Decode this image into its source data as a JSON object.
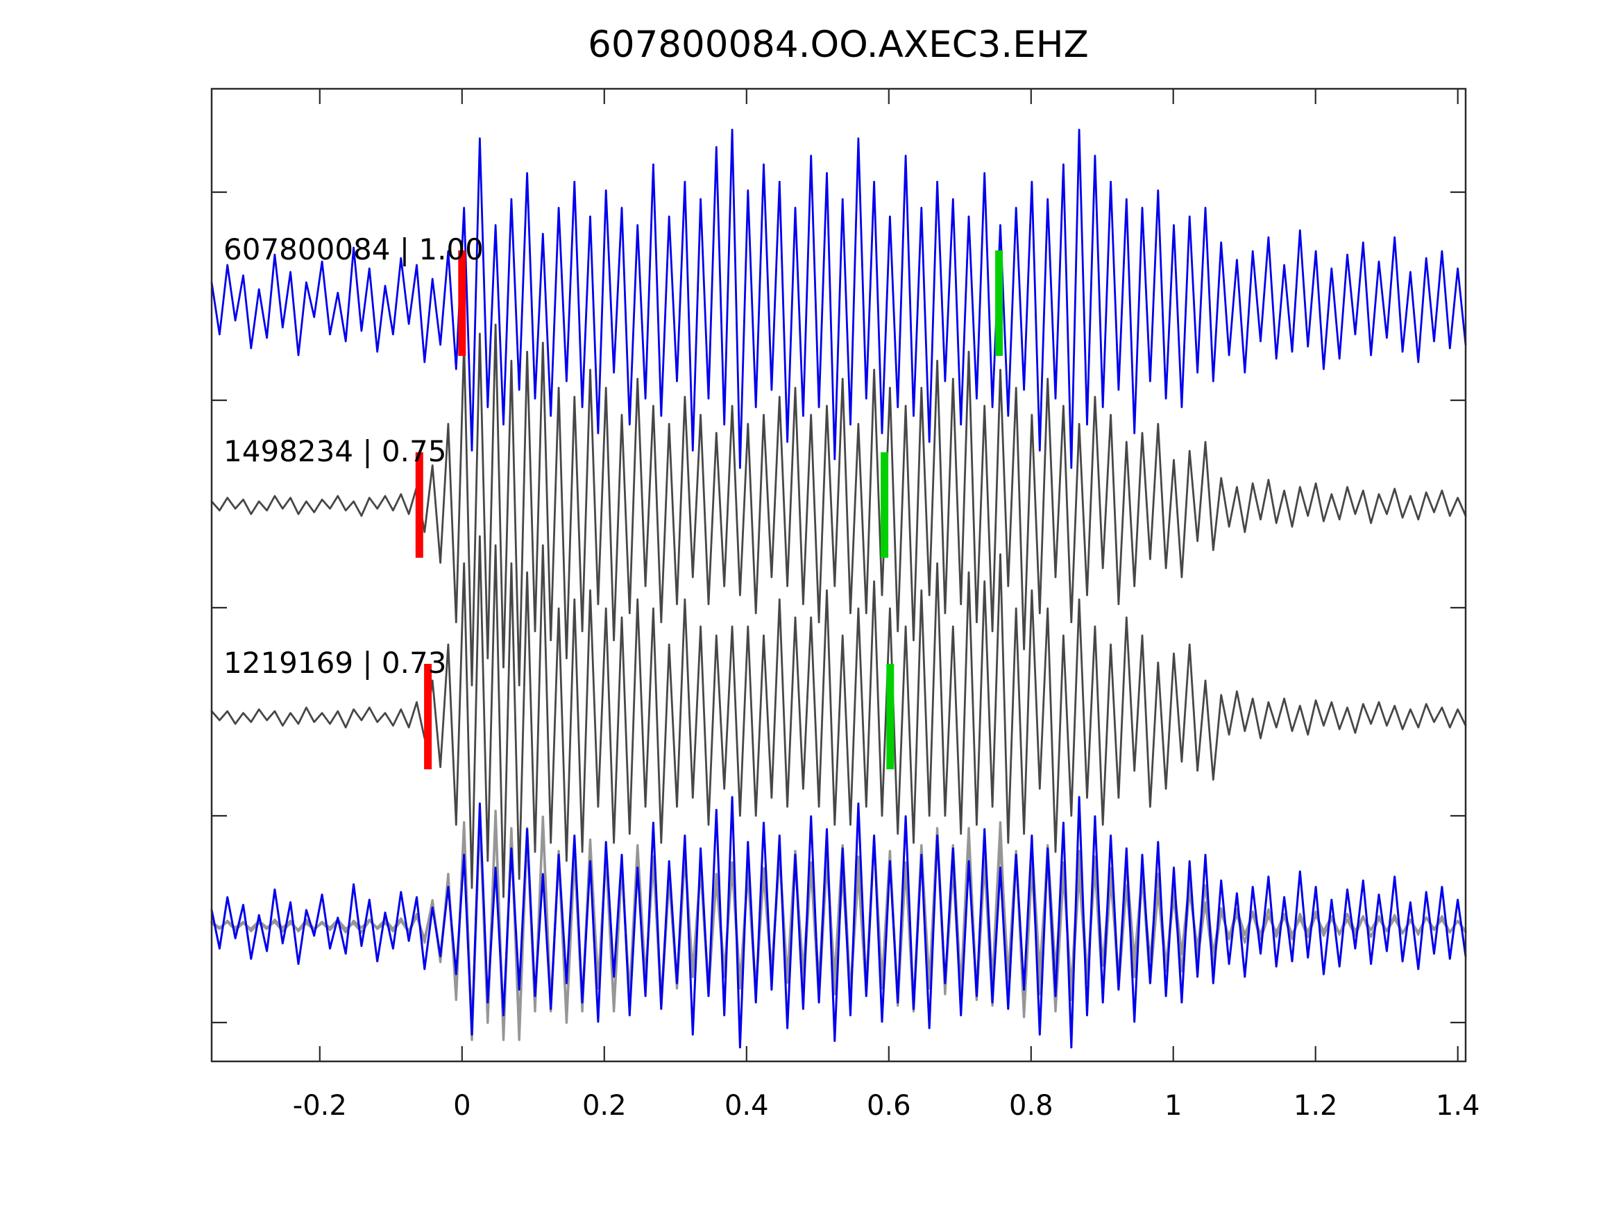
{
  "title": "607800084.OO.AXEC3.EHZ",
  "colors": {
    "blue": "#0000ee",
    "dark_gray": "#474747",
    "light_gray": "#969696",
    "red": "#ff0000",
    "green": "#00d000",
    "axis": "#2a2a2a",
    "background": "#ffffff"
  },
  "chart_data": {
    "type": "line",
    "title": "607800084.OO.AXEC3.EHZ",
    "x": {
      "start": -0.352,
      "end": 1.411,
      "n": 160,
      "unit": "s"
    },
    "x_ticks": [
      {
        "label": "-0.2",
        "value": -0.2
      },
      {
        "label": "0",
        "value": 0.0
      },
      {
        "label": "0.2",
        "value": 0.2
      },
      {
        "label": "0.4",
        "value": 0.4
      },
      {
        "label": "0.6",
        "value": 0.6
      },
      {
        "label": "0.8",
        "value": 0.8
      },
      {
        "label": "1",
        "value": 1.0
      },
      {
        "label": "1.2",
        "value": 1.2
      },
      {
        "label": "1.4",
        "value": 1.4
      }
    ],
    "grid": false,
    "legend": false,
    "series": [
      {
        "key": "detection",
        "name": "607800084",
        "role": "detection",
        "values": [
          0.12,
          -0.18,
          0.22,
          -0.1,
          0.16,
          -0.26,
          0.08,
          -0.2,
          0.28,
          -0.14,
          0.18,
          -0.3,
          0.12,
          -0.08,
          0.24,
          -0.18,
          0.06,
          -0.22,
          0.32,
          -0.16,
          0.2,
          -0.28,
          0.1,
          -0.18,
          0.26,
          -0.12,
          0.22,
          -0.34,
          0.14,
          -0.24,
          0.3,
          -0.38,
          0.55,
          -0.85,
          0.95,
          -0.6,
          0.45,
          -0.7,
          0.6,
          -0.5,
          0.75,
          -0.55,
          0.4,
          -0.65,
          0.55,
          -0.45,
          0.7,
          -0.6,
          0.5,
          -0.75,
          0.65,
          -0.4,
          0.55,
          -0.7,
          0.45,
          -0.55,
          0.8,
          -0.65,
          0.5,
          -0.45,
          0.7,
          -0.85,
          0.6,
          -0.55,
          0.9,
          -0.7,
          1.0,
          -0.95,
          0.65,
          -0.6,
          0.8,
          -0.5,
          0.7,
          -0.8,
          0.55,
          -0.65,
          0.85,
          -0.6,
          0.75,
          -0.9,
          0.6,
          -0.7,
          0.95,
          -0.55,
          0.7,
          -0.75,
          0.5,
          -0.6,
          0.85,
          -0.65,
          0.55,
          -0.8,
          0.7,
          -0.45,
          0.6,
          -0.7,
          0.5,
          -0.55,
          0.75,
          -0.6,
          0.45,
          -0.65,
          0.55,
          -0.5,
          0.7,
          -0.85,
          0.6,
          -0.55,
          0.8,
          -0.95,
          1.0,
          -0.7,
          0.85,
          -0.6,
          0.7,
          -0.5,
          0.6,
          -0.75,
          0.55,
          -0.45,
          0.65,
          -0.55,
          0.45,
          -0.6,
          0.5,
          -0.4,
          0.55,
          -0.45,
          0.35,
          -0.3,
          0.25,
          -0.4,
          0.3,
          -0.22,
          0.38,
          -0.32,
          0.22,
          -0.28,
          0.42,
          -0.25,
          0.3,
          -0.38,
          0.2,
          -0.32,
          0.28,
          -0.18,
          0.35,
          -0.3,
          0.24,
          -0.2,
          0.38,
          -0.28,
          0.18,
          -0.34,
          0.26,
          -0.22,
          0.3,
          -0.26,
          0.2,
          -0.24
        ]
      },
      {
        "key": "template_1498234",
        "name": "1498234",
        "role": "template",
        "values": [
          0.02,
          -0.03,
          0.04,
          -0.02,
          0.03,
          -0.05,
          0.02,
          -0.03,
          0.05,
          -0.02,
          0.04,
          -0.05,
          0.02,
          -0.04,
          0.03,
          -0.02,
          0.05,
          -0.03,
          0.02,
          -0.06,
          0.04,
          -0.02,
          0.05,
          -0.03,
          0.06,
          -0.05,
          0.1,
          -0.15,
          0.22,
          -0.32,
          0.45,
          -0.65,
          0.9,
          -1.0,
          0.95,
          -0.85,
          1.0,
          -0.9,
          0.8,
          -1.0,
          0.85,
          -0.7,
          0.9,
          -0.75,
          0.65,
          -0.85,
          0.6,
          -0.7,
          0.75,
          -0.55,
          0.65,
          -0.75,
          0.5,
          -0.6,
          0.7,
          -0.45,
          0.55,
          -0.65,
          0.45,
          -0.55,
          0.6,
          -0.4,
          0.5,
          -0.55,
          0.4,
          -0.45,
          0.55,
          -0.5,
          0.45,
          -0.6,
          0.5,
          -0.4,
          0.6,
          -0.45,
          0.65,
          -0.55,
          0.5,
          -0.65,
          0.55,
          -0.45,
          0.7,
          -0.6,
          0.45,
          -0.6,
          0.75,
          -0.5,
          0.65,
          -0.7,
          0.55,
          -0.75,
          0.65,
          -0.5,
          0.8,
          -0.6,
          0.7,
          -0.55,
          0.85,
          -0.65,
          0.55,
          -0.7,
          0.75,
          -0.45,
          0.65,
          -0.8,
          0.5,
          -0.6,
          0.7,
          -0.4,
          0.55,
          -0.65,
          0.45,
          -0.5,
          0.6,
          -0.35,
          0.5,
          -0.55,
          0.35,
          -0.45,
          0.4,
          -0.3,
          0.45,
          -0.35,
          0.25,
          -0.4,
          0.3,
          -0.2,
          0.35,
          -0.25,
          0.15,
          -0.12,
          0.1,
          -0.15,
          0.12,
          -0.08,
          0.14,
          -0.1,
          0.08,
          -0.12,
          0.1,
          -0.06,
          0.12,
          -0.09,
          0.06,
          -0.08,
          0.1,
          -0.05,
          0.08,
          -0.1,
          0.06,
          -0.05,
          0.09,
          -0.07,
          0.05,
          -0.08,
          0.07,
          -0.04,
          0.08,
          -0.06,
          0.04,
          -0.06
        ]
      },
      {
        "key": "template_1219169",
        "name": "1219169",
        "role": "template",
        "values": [
          0.03,
          -0.02,
          0.03,
          -0.04,
          0.02,
          -0.03,
          0.04,
          -0.02,
          0.03,
          -0.05,
          0.02,
          -0.04,
          0.05,
          -0.03,
          0.02,
          -0.04,
          0.03,
          -0.06,
          0.04,
          -0.02,
          0.05,
          -0.03,
          0.02,
          -0.05,
          0.04,
          -0.06,
          0.08,
          -0.12,
          0.2,
          -0.28,
          0.4,
          -0.6,
          0.85,
          -0.95,
          1.0,
          -0.8,
          0.95,
          -1.0,
          0.85,
          -0.9,
          0.8,
          -0.75,
          0.95,
          -0.7,
          0.6,
          -0.8,
          0.65,
          -0.75,
          0.7,
          -0.5,
          0.6,
          -0.7,
          0.55,
          -0.65,
          0.65,
          -0.5,
          0.6,
          -0.7,
          0.4,
          -0.5,
          0.65,
          -0.45,
          0.5,
          -0.6,
          0.45,
          -0.4,
          0.5,
          -0.55,
          0.5,
          -0.55,
          0.45,
          -0.45,
          0.65,
          -0.5,
          0.55,
          -0.4,
          0.55,
          -0.5,
          0.7,
          -0.6,
          0.45,
          -0.6,
          0.6,
          -0.5,
          0.75,
          -0.55,
          0.6,
          -0.65,
          0.5,
          -0.7,
          0.7,
          -0.55,
          0.85,
          -0.55,
          0.5,
          -0.65,
          0.8,
          -0.6,
          0.75,
          -0.5,
          0.9,
          -0.7,
          0.6,
          -0.65,
          0.7,
          -0.4,
          0.6,
          -0.75,
          0.45,
          -0.55,
          0.65,
          -0.45,
          0.5,
          -0.6,
          0.4,
          -0.45,
          0.55,
          -0.3,
          0.45,
          -0.5,
          0.3,
          -0.4,
          0.35,
          -0.25,
          0.4,
          -0.3,
          0.2,
          -0.35,
          0.12,
          -0.1,
          0.14,
          -0.08,
          0.1,
          -0.12,
          0.08,
          -0.06,
          0.1,
          -0.08,
          0.06,
          -0.1,
          0.09,
          -0.05,
          0.08,
          -0.07,
          0.05,
          -0.09,
          0.07,
          -0.04,
          0.08,
          -0.05,
          0.06,
          -0.07,
          0.04,
          -0.06,
          0.07,
          -0.03,
          0.05,
          -0.06,
          0.04,
          -0.05
        ]
      }
    ],
    "panels": [
      {
        "label": "607800084 | 1.00",
        "series": [
          {
            "key": "detection",
            "color": "blue"
          }
        ],
        "markers": {
          "red_t": 0.0,
          "green_t": 0.755
        }
      },
      {
        "label": "1498234 | 0.75",
        "series": [
          {
            "key": "template_1498234",
            "color": "dark_gray"
          }
        ],
        "markers": {
          "red_t": -0.06,
          "green_t": 0.594
        }
      },
      {
        "label": "1219169 | 0.73",
        "series": [
          {
            "key": "template_1219169",
            "color": "dark_gray"
          }
        ],
        "markers": {
          "red_t": -0.048,
          "green_t": 0.602
        }
      },
      {
        "label": "",
        "series": [
          {
            "key": "template_1498234",
            "color": "light_gray"
          },
          {
            "key": "template_1219169",
            "color": "light_gray"
          },
          {
            "key": "detection",
            "color": "blue"
          }
        ],
        "markers": null
      }
    ]
  }
}
